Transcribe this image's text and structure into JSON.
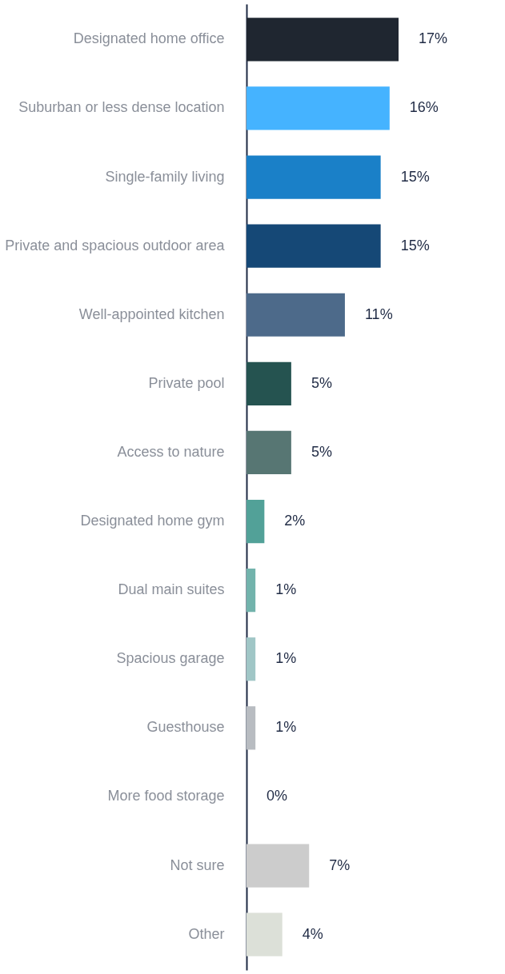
{
  "chart_data": {
    "type": "bar",
    "orientation": "horizontal",
    "grid": false,
    "tick_labels": "y",
    "categories": [
      "Designated home office",
      "Suburban or less dense location",
      "Single-family living",
      "Private and spacious outdoor area",
      "Well-appointed kitchen",
      "Private pool",
      "Access to nature",
      "Designated home gym",
      "Dual main suites",
      "Spacious garage",
      "Guesthouse",
      "More food storage",
      "Not sure",
      "Other"
    ],
    "values": [
      17,
      16,
      15,
      15,
      11,
      5,
      5,
      2,
      1,
      1,
      1,
      0,
      7,
      4
    ],
    "value_labels": [
      "17%",
      "16%",
      "15%",
      "15%",
      "11%",
      "5%",
      "5%",
      "2%",
      "1%",
      "1%",
      "1%",
      "0%",
      "7%",
      "4%"
    ],
    "colors": [
      "#1f2630",
      "#45b3ff",
      "#1a80c8",
      "#154876",
      "#4d6a8a",
      "#255350",
      "#577673",
      "#52a198",
      "#72b3ac",
      "#a0c6c6",
      "#b8bcc1",
      "#b8bcc1",
      "#cccccc",
      "#dce0d8"
    ]
  }
}
